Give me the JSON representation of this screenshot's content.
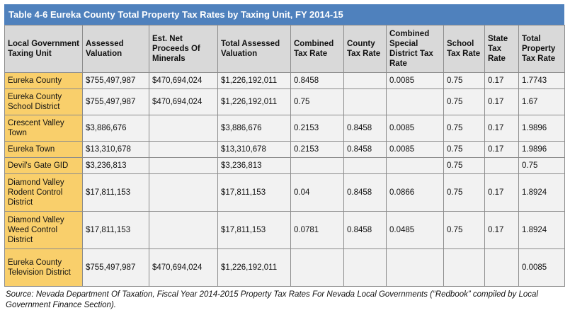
{
  "title": "Table 4-6 Eureka County Total Property Tax Rates by Taxing Unit, FY 2014-15",
  "headers": [
    "Local Government Taxing Unit",
    "Assessed Valuation",
    "Est. Net Proceeds Of Minerals",
    "Total Assessed Valuation",
    "Combined Tax Rate",
    "County Tax Rate",
    "Combined Special District Tax Rate",
    "School Tax Rate",
    "State Tax Rate",
    "Total Property Tax Rate"
  ],
  "rows": [
    [
      "Eureka County",
      "$755,497,987",
      "$470,694,024",
      "$1,226,192,011",
      "0.8458",
      "",
      "0.0085",
      "0.75",
      "0.17",
      "1.7743"
    ],
    [
      "Eureka County School District",
      "$755,497,987",
      "$470,694,024",
      "$1,226,192,011",
      "0.75",
      "",
      "",
      "0.75",
      "0.17",
      "1.67"
    ],
    [
      "Crescent Valley Town",
      "$3,886,676",
      "",
      "$3,886,676",
      "0.2153",
      "0.8458",
      "0.0085",
      "0.75",
      "0.17",
      "1.9896"
    ],
    [
      "Eureka Town",
      "$13,310,678",
      "",
      "$13,310,678",
      "0.2153",
      "0.8458",
      "0.0085",
      "0.75",
      "0.17",
      "1.9896"
    ],
    [
      "Devil's Gate GID",
      "$3,236,813",
      "",
      "$3,236,813",
      "",
      "",
      "",
      "0.75",
      "",
      "0.75"
    ],
    [
      "Diamond Valley Rodent Control District",
      "$17,811,153",
      "",
      "$17,811,153",
      "0.04",
      "0.8458",
      "0.0866",
      "0.75",
      "0.17",
      "1.8924"
    ],
    [
      "Diamond Valley Weed Control District",
      "$17,811,153",
      "",
      "$17,811,153",
      "0.0781",
      "0.8458",
      "0.0485",
      "0.75",
      "0.17",
      "1.8924"
    ],
    [
      "Eureka County Television District",
      "$755,497,987",
      "$470,694,024",
      "$1,226,192,011",
      "",
      "",
      "",
      "",
      "",
      "0.0085"
    ]
  ],
  "source": "Source: Nevada Department Of Taxation, Fiscal Year 2014-2015 Property Tax Rates For Nevada Local Governments (“Redbook” compiled by Local Government Finance Section)."
}
